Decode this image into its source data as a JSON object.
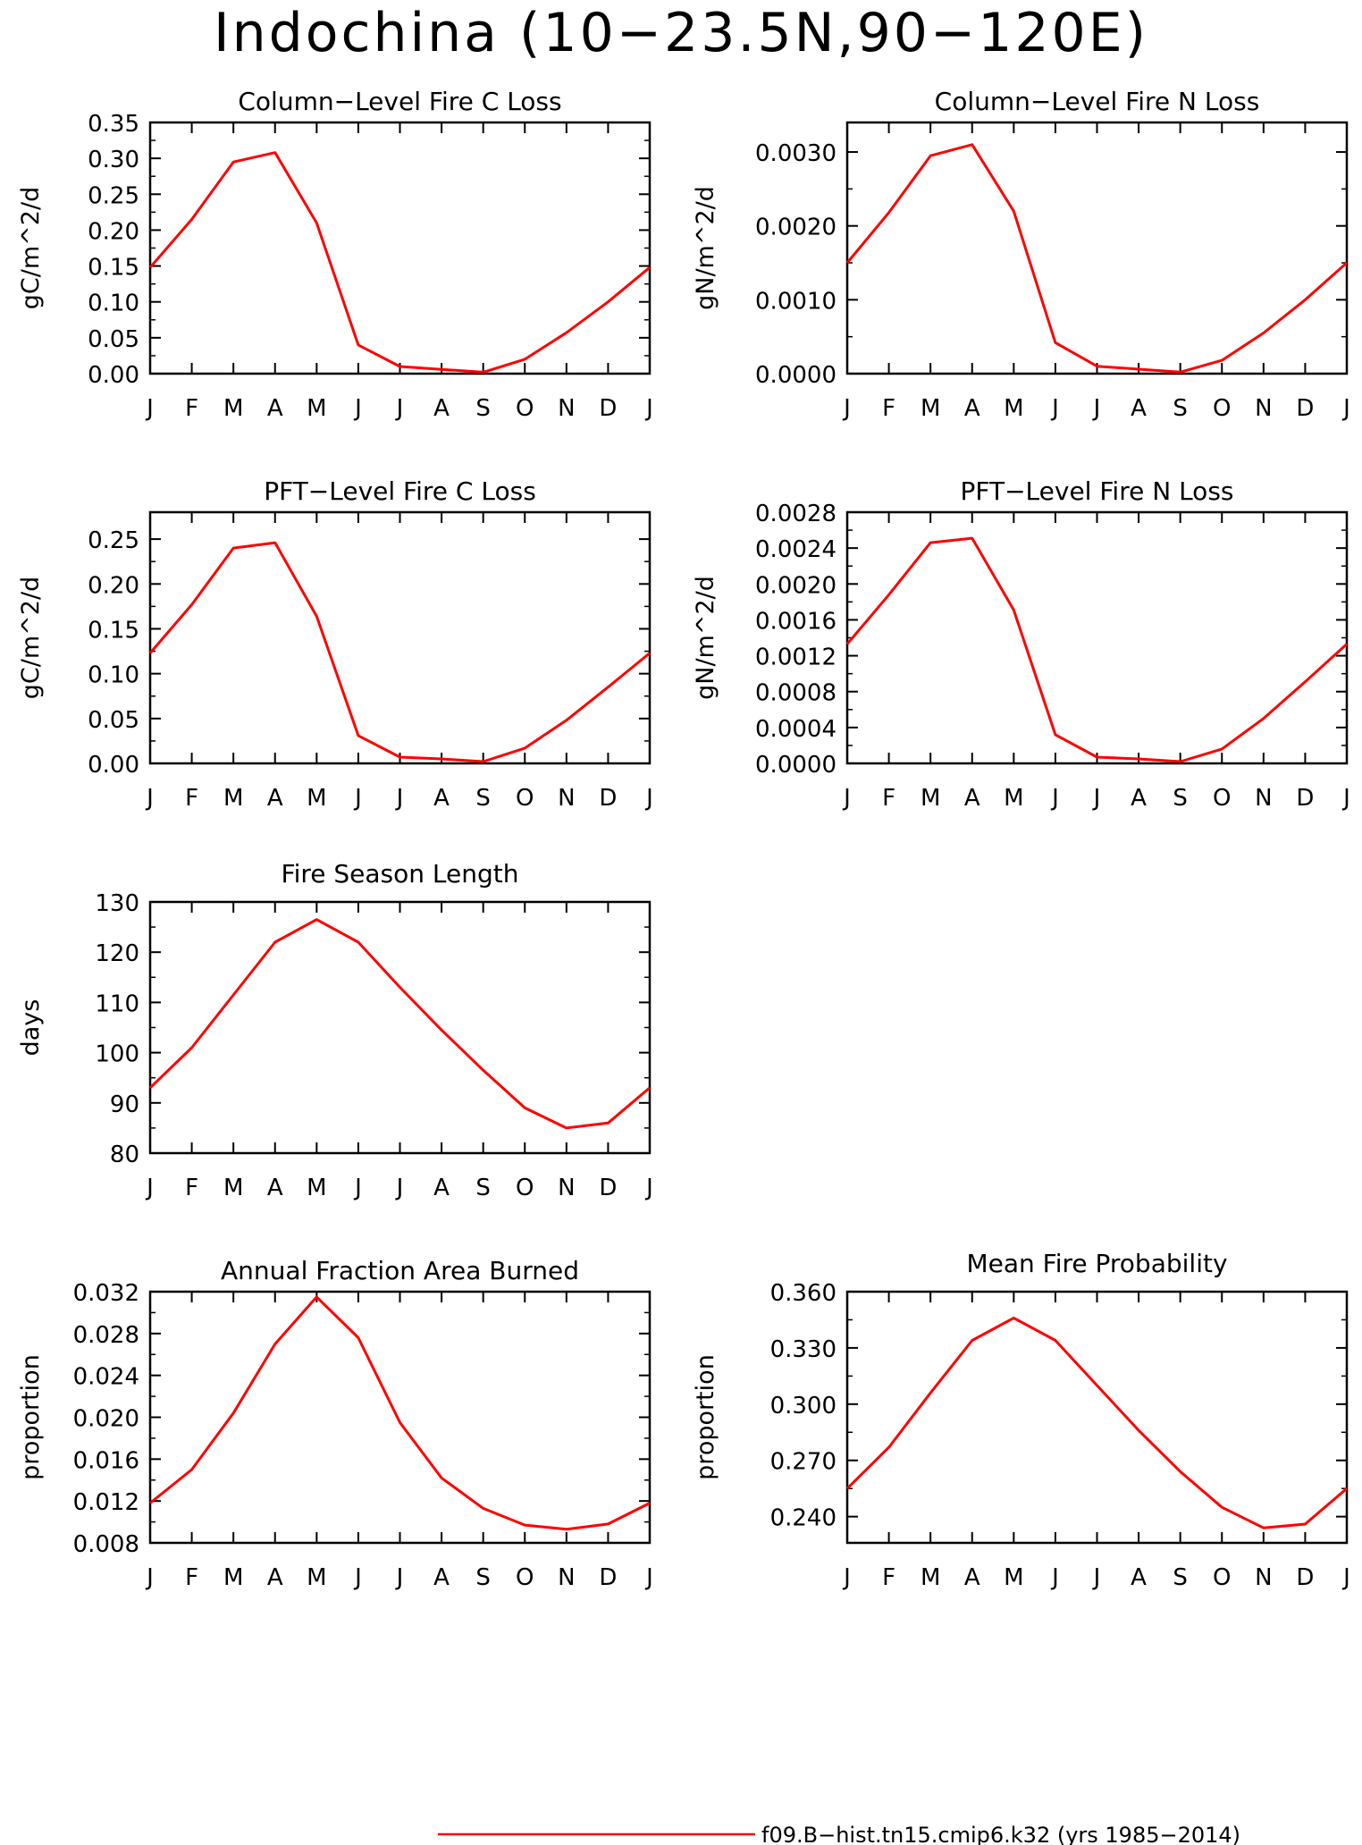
{
  "title": "Indochina (10−23.5N,90−120E)",
  "months": [
    "J",
    "F",
    "M",
    "A",
    "M",
    "J",
    "J",
    "A",
    "S",
    "O",
    "N",
    "D",
    "J"
  ],
  "line_color": "#ff0000",
  "legend": {
    "label": "f09.B−hist.tn15.cmip6.k32 (yrs 1985−2014)"
  },
  "chart_data": [
    {
      "type": "line",
      "title": "Column−Level Fire C Loss",
      "ylabel": "gC/m^2/d",
      "ylim": [
        0,
        0.35
      ],
      "yticks": [
        "0.00",
        "0.05",
        "0.10",
        "0.15",
        "0.20",
        "0.25",
        "0.30",
        "0.35"
      ],
      "y": [
        0.148,
        0.215,
        0.295,
        0.308,
        0.21,
        0.04,
        0.01,
        0.006,
        0.002,
        0.02,
        0.057,
        0.1,
        0.148
      ]
    },
    {
      "type": "line",
      "title": "Column−Level Fire N Loss",
      "ylabel": "gN/m^2/d",
      "ylim": [
        0,
        0.0034
      ],
      "yticks": [
        "0.0000",
        "0.0010",
        "0.0020",
        "0.0030"
      ],
      "y": [
        0.0015,
        0.00218,
        0.00295,
        0.0031,
        0.0022,
        0.00042,
        0.0001,
        6e-05,
        2e-05,
        0.00018,
        0.00055,
        0.001,
        0.0015
      ]
    },
    {
      "type": "line",
      "title": "PFT−Level Fire C Loss",
      "ylabel": "gC/m^2/d",
      "ylim": [
        0,
        0.28
      ],
      "yticks": [
        "0.00",
        "0.05",
        "0.10",
        "0.15",
        "0.20",
        "0.25"
      ],
      "y": [
        0.123,
        0.177,
        0.24,
        0.246,
        0.164,
        0.031,
        0.007,
        0.005,
        0.002,
        0.017,
        0.048,
        0.085,
        0.123
      ]
    },
    {
      "type": "line",
      "title": "PFT−Level Fire N Loss",
      "ylabel": "gN/m^2/d",
      "ylim": [
        0,
        0.0028
      ],
      "yticks": [
        "0.0000",
        "0.0004",
        "0.0008",
        "0.0012",
        "0.0016",
        "0.0020",
        "0.0024",
        "0.0028"
      ],
      "y": [
        0.00133,
        0.00188,
        0.00246,
        0.00251,
        0.00171,
        0.00032,
        7e-05,
        5e-05,
        2e-05,
        0.00016,
        0.0005,
        0.00091,
        0.00133
      ]
    },
    {
      "type": "line",
      "title": "Fire Season Length",
      "ylabel": "days",
      "ylim": [
        80,
        130
      ],
      "yticks": [
        "80",
        "90",
        "100",
        "110",
        "120",
        "130"
      ],
      "y": [
        93,
        101,
        111.5,
        122,
        126.5,
        122,
        113,
        104.5,
        96.5,
        89,
        85,
        86,
        93
      ]
    },
    {
      "type": "line",
      "title": "Annual Fraction Area Burned",
      "ylabel": "proportion",
      "ylim": [
        0.008,
        0.032
      ],
      "yticks": [
        "0.008",
        "0.012",
        "0.016",
        "0.020",
        "0.024",
        "0.028",
        "0.032"
      ],
      "y": [
        0.0118,
        0.015,
        0.0204,
        0.027,
        0.0315,
        0.0276,
        0.0195,
        0.0142,
        0.0113,
        0.0097,
        0.0093,
        0.0098,
        0.0118
      ]
    },
    {
      "type": "line",
      "title": "Mean Fire Probability",
      "ylabel": "proportion",
      "ylim": [
        0.226,
        0.36
      ],
      "yticks": [
        "0.240",
        "0.270",
        "0.300",
        "0.330",
        "0.360"
      ],
      "y": [
        0.255,
        0.277,
        0.306,
        0.334,
        0.346,
        0.334,
        0.31,
        0.286,
        0.264,
        0.245,
        0.234,
        0.236,
        0.255
      ]
    }
  ]
}
